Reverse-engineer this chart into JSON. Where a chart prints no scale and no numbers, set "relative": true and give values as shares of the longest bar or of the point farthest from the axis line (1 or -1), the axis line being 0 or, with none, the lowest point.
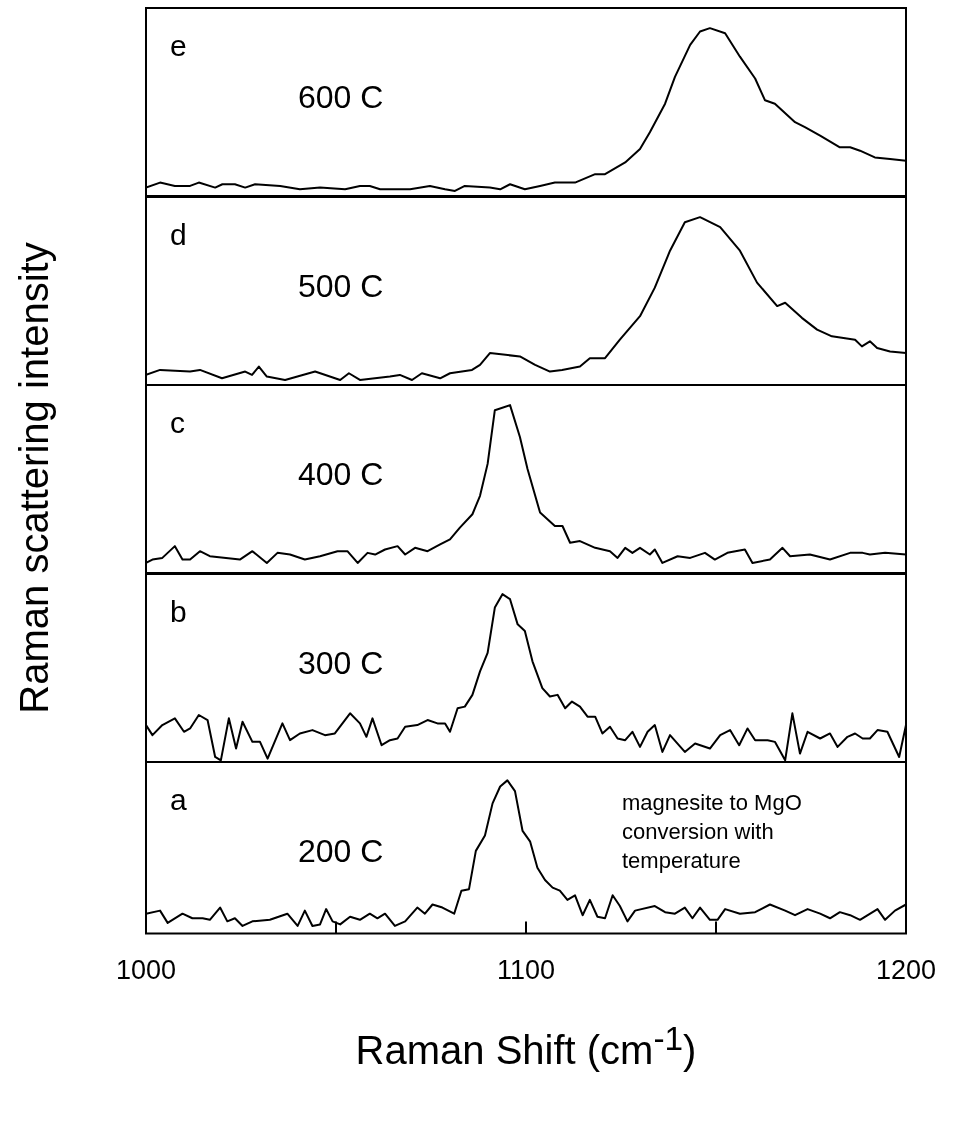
{
  "chart_data": [
    {
      "type": "line",
      "relative": true,
      "color": "#000000",
      "marker": "none",
      "xlim": [
        1000,
        1200
      ],
      "tick_labels": false,
      "annotations": [
        "e",
        "600 C"
      ],
      "x": [
        1000,
        1003.7,
        1007.6,
        1011.6,
        1013.9,
        1018.2,
        1020.1,
        1023.4,
        1026.1,
        1028.7,
        1035.3,
        1040.5,
        1045.8,
        1052.4,
        1056.3,
        1058.9,
        1061.6,
        1069.5,
        1074.7,
        1078.7,
        1081.3,
        1083.9,
        1090.5,
        1093.2,
        1095.8,
        1099.7,
        1103.7,
        1107.6,
        1112.9,
        1118.2,
        1120.8,
        1126.1,
        1130,
        1132.6,
        1136.6,
        1139.2,
        1143.2,
        1145.8,
        1148.4,
        1152.4,
        1156.3,
        1160.3,
        1162.9,
        1165.5,
        1170.8,
        1173.4,
        1177.4,
        1182.6,
        1185.3,
        1187.9,
        1191.8,
        1195.8,
        1200
      ],
      "values": [
        0.05,
        0.08,
        0.06,
        0.06,
        0.08,
        0.05,
        0.07,
        0.07,
        0.05,
        0.07,
        0.06,
        0.04,
        0.05,
        0.04,
        0.06,
        0.06,
        0.04,
        0.04,
        0.06,
        0.04,
        0.03,
        0.06,
        0.05,
        0.04,
        0.07,
        0.04,
        0.06,
        0.08,
        0.08,
        0.13,
        0.13,
        0.2,
        0.28,
        0.38,
        0.55,
        0.71,
        0.9,
        0.98,
        1,
        0.97,
        0.83,
        0.7,
        0.57,
        0.55,
        0.44,
        0.41,
        0.36,
        0.29,
        0.29,
        0.27,
        0.23,
        0.22,
        0.21
      ]
    },
    {
      "type": "line",
      "relative": true,
      "color": "#000000",
      "marker": "none",
      "xlim": [
        1000,
        1200
      ],
      "tick_labels": false,
      "annotations": [
        "d",
        "500 C"
      ],
      "x": [
        1000,
        1003.7,
        1011.6,
        1014.2,
        1020,
        1026.1,
        1027.9,
        1029.7,
        1031.8,
        1036.6,
        1044.5,
        1051.1,
        1053.4,
        1056.3,
        1064.2,
        1066.8,
        1070,
        1072.6,
        1077.4,
        1080,
        1085.8,
        1087.9,
        1090.5,
        1098.4,
        1102.4,
        1106.3,
        1109.5,
        1114.2,
        1116.8,
        1120.8,
        1124.7,
        1130,
        1133.9,
        1137.9,
        1141.8,
        1145.8,
        1151.1,
        1156.3,
        1160.8,
        1166.1,
        1168.2,
        1172.6,
        1176.6,
        1180.5,
        1186.6,
        1188.4,
        1190.5,
        1192.4,
        1195.8,
        1200
      ],
      "values": [
        0.06,
        0.09,
        0.08,
        0.09,
        0.04,
        0.08,
        0.06,
        0.11,
        0.05,
        0.03,
        0.08,
        0.03,
        0.07,
        0.03,
        0.05,
        0.06,
        0.03,
        0.07,
        0.04,
        0.07,
        0.09,
        0.12,
        0.19,
        0.17,
        0.12,
        0.08,
        0.09,
        0.11,
        0.16,
        0.16,
        0.27,
        0.41,
        0.58,
        0.8,
        0.97,
        1,
        0.94,
        0.8,
        0.61,
        0.47,
        0.49,
        0.4,
        0.33,
        0.29,
        0.27,
        0.23,
        0.26,
        0.22,
        0.2,
        0.19
      ]
    },
    {
      "type": "line",
      "relative": true,
      "color": "#000000",
      "marker": "none",
      "xlim": [
        1000,
        1200
      ],
      "tick_labels": false,
      "annotations": [
        "c",
        "400 C"
      ],
      "ylabel": "Raman scattering intensity",
      "x": [
        1000,
        1001.7,
        1004.3,
        1007.6,
        1009.6,
        1011.6,
        1014.2,
        1016.8,
        1024.7,
        1028,
        1031.8,
        1034.6,
        1037.9,
        1041.8,
        1045.8,
        1050.4,
        1053,
        1055.7,
        1058.3,
        1060.3,
        1062.9,
        1066.2,
        1068.2,
        1070.8,
        1074.1,
        1077.4,
        1080,
        1082.6,
        1085.9,
        1087.9,
        1089.9,
        1091.8,
        1095.8,
        1098.4,
        1100.4,
        1103.7,
        1107.6,
        1109.6,
        1111.6,
        1114.2,
        1118.2,
        1122.1,
        1124.1,
        1126.1,
        1128,
        1130,
        1132.6,
        1133.9,
        1135.9,
        1139.9,
        1143.2,
        1147.1,
        1149.7,
        1153,
        1157.6,
        1159.6,
        1164.2,
        1167.5,
        1169.5,
        1174.7,
        1180,
        1185.3,
        1188.6,
        1190.5,
        1194.5,
        1200
      ],
      "values": [
        0.06,
        0.08,
        0.09,
        0.16,
        0.08,
        0.08,
        0.13,
        0.1,
        0.08,
        0.13,
        0.06,
        0.12,
        0.11,
        0.08,
        0.1,
        0.13,
        0.13,
        0.06,
        0.12,
        0.11,
        0.14,
        0.16,
        0.11,
        0.15,
        0.13,
        0.17,
        0.2,
        0.27,
        0.35,
        0.46,
        0.65,
        0.97,
        1,
        0.81,
        0.62,
        0.36,
        0.28,
        0.28,
        0.18,
        0.19,
        0.15,
        0.13,
        0.09,
        0.15,
        0.12,
        0.15,
        0.11,
        0.14,
        0.06,
        0.1,
        0.09,
        0.12,
        0.08,
        0.12,
        0.14,
        0.06,
        0.08,
        0.15,
        0.1,
        0.11,
        0.08,
        0.12,
        0.12,
        0.11,
        0.12,
        0.11
      ]
    },
    {
      "type": "line",
      "relative": true,
      "color": "#000000",
      "marker": "none",
      "xlim": [
        1000,
        1200
      ],
      "tick_labels": false,
      "annotations": [
        "b",
        "300 C"
      ],
      "x": [
        1000,
        1001.7,
        1004.3,
        1007.6,
        1010,
        1011.6,
        1013.9,
        1016.2,
        1018.2,
        1019.7,
        1021.8,
        1023.7,
        1025.4,
        1028,
        1030,
        1032,
        1035.9,
        1037.9,
        1040.5,
        1043.8,
        1047.1,
        1049.7,
        1053.7,
        1056.3,
        1058,
        1059.6,
        1062,
        1064.2,
        1066.2,
        1068.2,
        1071.4,
        1074.1,
        1076.7,
        1078.7,
        1080,
        1082,
        1083.9,
        1085.9,
        1087.9,
        1089.9,
        1091.8,
        1093.8,
        1095.8,
        1097.8,
        1099.7,
        1101.7,
        1104.3,
        1106.3,
        1108.3,
        1110.3,
        1112.1,
        1114.2,
        1116.2,
        1118.2,
        1120.1,
        1122.1,
        1124.1,
        1126.1,
        1128,
        1130,
        1132,
        1133.9,
        1135.9,
        1137.9,
        1141.8,
        1144.5,
        1148.4,
        1151.1,
        1153.7,
        1156.1,
        1158.3,
        1160.3,
        1163.6,
        1165.5,
        1168.2,
        1170.1,
        1172.1,
        1174.1,
        1177.4,
        1180,
        1182,
        1184.6,
        1186.6,
        1188.6,
        1190.5,
        1192.5,
        1195.1,
        1198.2,
        1200
      ],
      "values": [
        0.22,
        0.16,
        0.22,
        0.26,
        0.18,
        0.2,
        0.28,
        0.25,
        0.03,
        0.01,
        0.26,
        0.08,
        0.24,
        0.12,
        0.12,
        0.02,
        0.23,
        0.13,
        0.17,
        0.19,
        0.16,
        0.17,
        0.29,
        0.23,
        0.15,
        0.26,
        0.1,
        0.13,
        0.14,
        0.21,
        0.22,
        0.25,
        0.23,
        0.23,
        0.18,
        0.32,
        0.33,
        0.4,
        0.54,
        0.65,
        0.92,
        1,
        0.97,
        0.82,
        0.78,
        0.6,
        0.44,
        0.39,
        0.4,
        0.32,
        0.36,
        0.33,
        0.27,
        0.27,
        0.17,
        0.21,
        0.14,
        0.13,
        0.18,
        0.09,
        0.18,
        0.22,
        0.06,
        0.16,
        0.06,
        0.11,
        0.08,
        0.16,
        0.19,
        0.1,
        0.2,
        0.13,
        0.13,
        0.12,
        0.01,
        0.29,
        0.05,
        0.18,
        0.14,
        0.17,
        0.09,
        0.15,
        0.17,
        0.14,
        0.14,
        0.19,
        0.18,
        0.03,
        0.22
      ]
    },
    {
      "type": "line",
      "relative": true,
      "color": "#000000",
      "marker": "none",
      "xlim": [
        1000,
        1200
      ],
      "tick_labels": "x",
      "xticks": [
        1000,
        {
          "value": 1050,
          "label": null
        },
        1100,
        {
          "value": 1150,
          "label": null
        },
        1200
      ],
      "xlabel": "Raman Shift (cm$^{-1}$)",
      "annotations": [
        "a",
        "200 C",
        "magnesite to MgO conversion with temperature"
      ],
      "x": [
        1000,
        1003.7,
        1005.7,
        1009.6,
        1012.2,
        1014.9,
        1016.8,
        1019.5,
        1021.4,
        1023.4,
        1025.4,
        1028,
        1032.6,
        1037.2,
        1039.9,
        1041.8,
        1043.8,
        1045.8,
        1047.4,
        1049.1,
        1051.1,
        1053.7,
        1056.3,
        1058.9,
        1060.9,
        1062.9,
        1065.5,
        1068.2,
        1071.4,
        1073.4,
        1075.4,
        1078,
        1081.1,
        1083,
        1085,
        1086.8,
        1089.2,
        1091.2,
        1093.2,
        1095.1,
        1097.1,
        1099.1,
        1101.1,
        1103,
        1105,
        1107,
        1108.9,
        1110.9,
        1112.9,
        1114.9,
        1116.8,
        1118.8,
        1120.8,
        1122.8,
        1124.7,
        1126.7,
        1128.7,
        1133.9,
        1136.6,
        1139.2,
        1141.8,
        1143.8,
        1145.8,
        1148.4,
        1150.4,
        1152.4,
        1156.3,
        1160.3,
        1164.2,
        1168.2,
        1170.8,
        1174.1,
        1177.4,
        1180,
        1182.6,
        1185.3,
        1187.9,
        1192.5,
        1194.5,
        1197.1,
        1200
      ],
      "values": [
        0.13,
        0.15,
        0.07,
        0.13,
        0.1,
        0.1,
        0.09,
        0.17,
        0.08,
        0.1,
        0.05,
        0.08,
        0.09,
        0.13,
        0.05,
        0.15,
        0.05,
        0.06,
        0.16,
        0.08,
        0.06,
        0.11,
        0.09,
        0.13,
        0.1,
        0.13,
        0.05,
        0.08,
        0.17,
        0.13,
        0.19,
        0.17,
        0.13,
        0.28,
        0.29,
        0.54,
        0.64,
        0.85,
        0.96,
        1,
        0.93,
        0.67,
        0.6,
        0.43,
        0.35,
        0.3,
        0.28,
        0.22,
        0.25,
        0.12,
        0.22,
        0.11,
        0.1,
        0.25,
        0.18,
        0.08,
        0.15,
        0.18,
        0.14,
        0.13,
        0.17,
        0.1,
        0.17,
        0.09,
        0.09,
        0.16,
        0.13,
        0.14,
        0.19,
        0.15,
        0.12,
        0.16,
        0.13,
        0.1,
        0.14,
        0.12,
        0.09,
        0.16,
        0.09,
        0.15,
        0.19
      ]
    }
  ]
}
